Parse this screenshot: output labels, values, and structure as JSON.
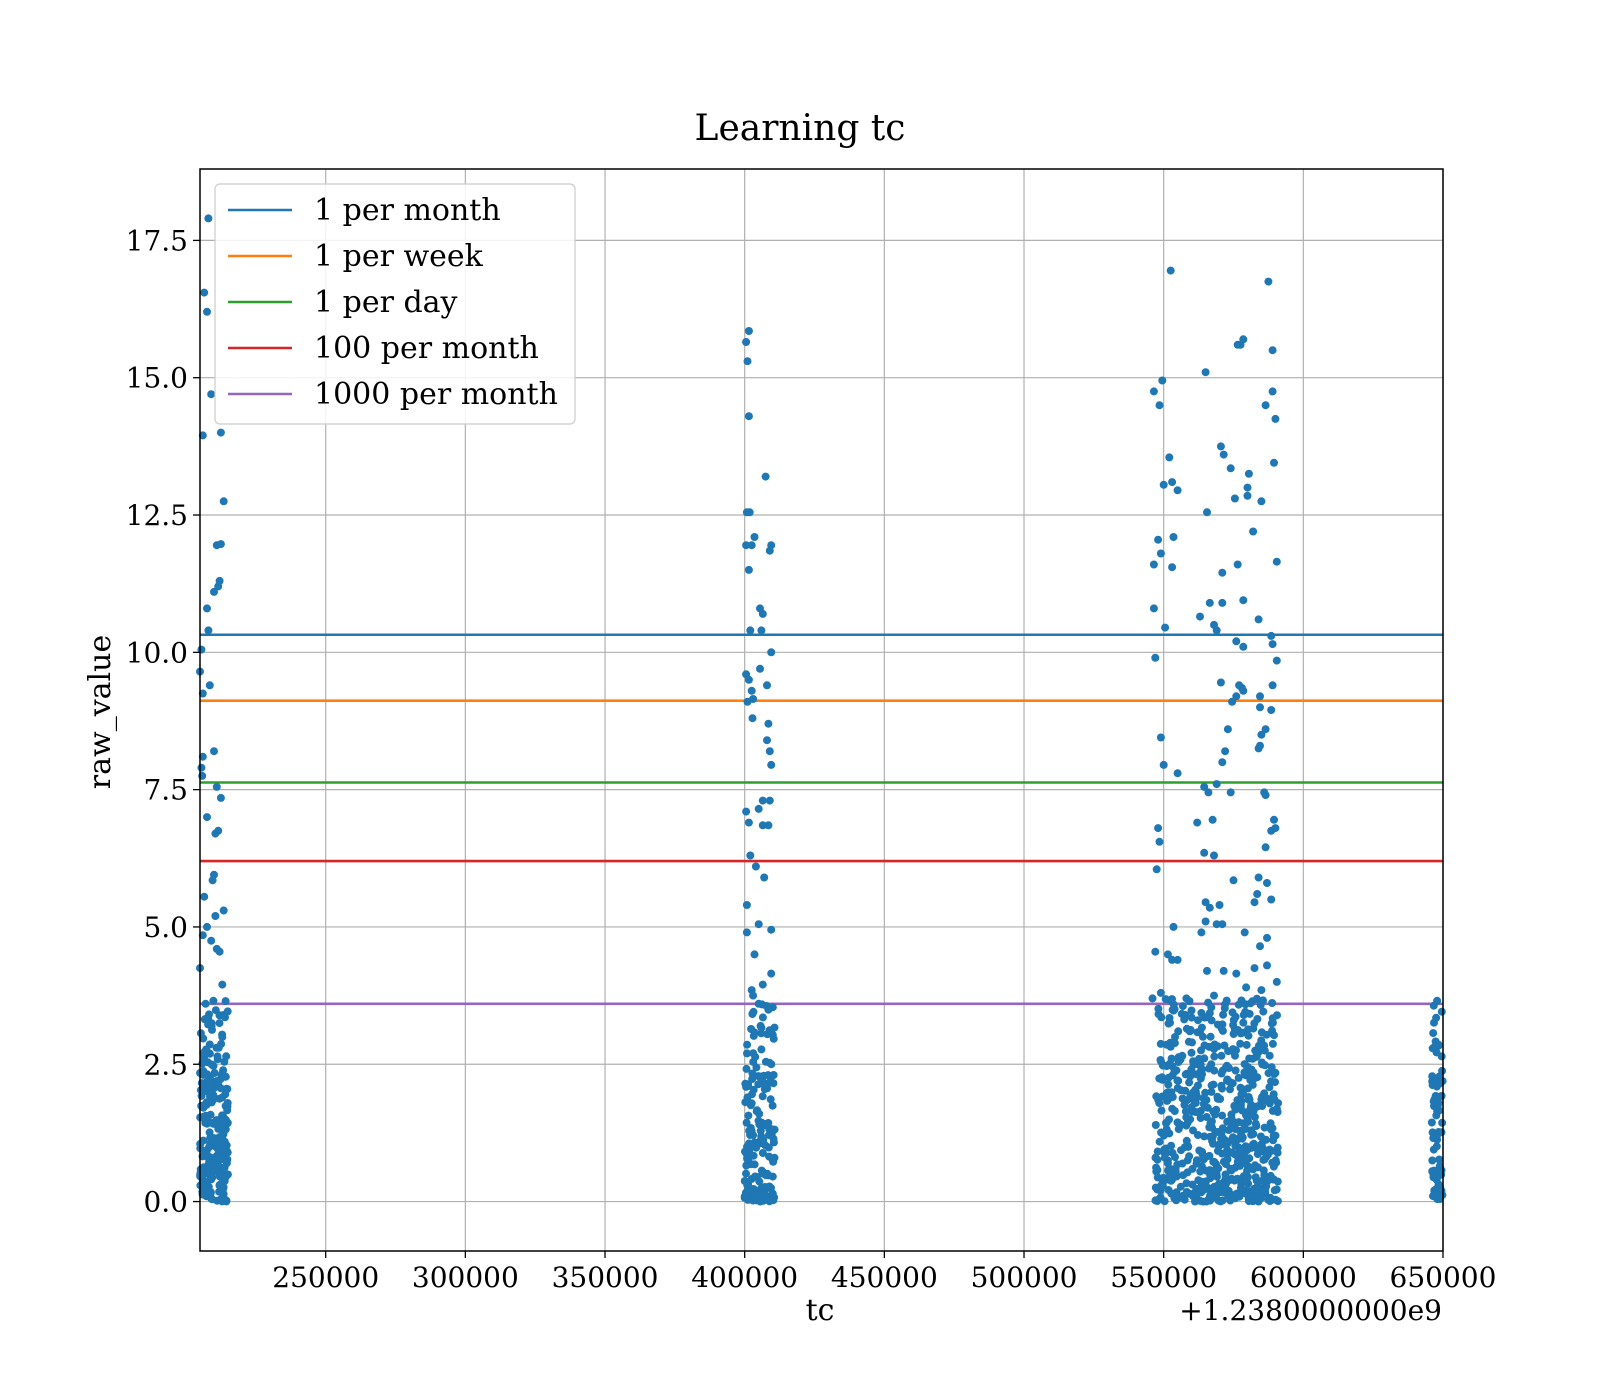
{
  "chart_data": {
    "type": "scatter",
    "title": "Learning tc",
    "xlabel": "tc",
    "ylabel": "raw_value",
    "x_offset_label": "+1.2380000000e9",
    "xlim": [
      205000,
      650000
    ],
    "ylim": [
      -0.9,
      18.8
    ],
    "xticks": [
      250000,
      300000,
      350000,
      400000,
      450000,
      500000,
      550000,
      600000,
      650000
    ],
    "yticks": [
      0.0,
      2.5,
      5.0,
      7.5,
      10.0,
      12.5,
      15.0,
      17.5
    ],
    "grid": true,
    "legend_position": "upper-left",
    "horizontal_lines": [
      {
        "name": "1 per month",
        "y": 10.32,
        "color": "#1f77b4"
      },
      {
        "name": "1 per week",
        "y": 9.12,
        "color": "#ff7f0e"
      },
      {
        "name": "1 per day",
        "y": 7.63,
        "color": "#2ca02c"
      },
      {
        "name": "100 per month",
        "y": 6.2,
        "color": "#d62728"
      },
      {
        "name": "1000 per month",
        "y": 3.6,
        "color": "#9467bd"
      }
    ],
    "scatter_color": "#1f77b4",
    "clusters": [
      {
        "x_range": [
          205000,
          215000
        ],
        "count": 230
      },
      {
        "x_range": [
          400000,
          411000
        ],
        "count": 170
      },
      {
        "x_range": [
          547000,
          591000
        ],
        "count": 650
      },
      {
        "x_range": [
          646000,
          650000
        ],
        "count": 70
      }
    ],
    "points": [
      [
        208000,
        17.9
      ],
      [
        206500,
        16.55
      ],
      [
        207500,
        16.2
      ],
      [
        209000,
        14.7
      ],
      [
        206000,
        13.95
      ],
      [
        212500,
        14.0
      ],
      [
        211000,
        11.95
      ],
      [
        212500,
        11.97
      ],
      [
        213500,
        12.75
      ],
      [
        210000,
        11.1
      ],
      [
        211500,
        11.2
      ],
      [
        212000,
        11.3
      ],
      [
        207500,
        10.8
      ],
      [
        208000,
        10.4
      ],
      [
        205500,
        10.05
      ],
      [
        205000,
        9.65
      ],
      [
        206000,
        9.25
      ],
      [
        208500,
        9.4
      ],
      [
        206000,
        8.1
      ],
      [
        210000,
        8.2
      ],
      [
        205500,
        7.9
      ],
      [
        205800,
        7.75
      ],
      [
        211000,
        7.55
      ],
      [
        212500,
        7.35
      ],
      [
        207500,
        7.0
      ],
      [
        210500,
        6.7
      ],
      [
        211500,
        6.75
      ],
      [
        210000,
        5.95
      ],
      [
        209500,
        5.85
      ],
      [
        206500,
        5.55
      ],
      [
        213500,
        5.3
      ],
      [
        210500,
        5.2
      ],
      [
        207500,
        5.0
      ],
      [
        206000,
        4.85
      ],
      [
        209000,
        4.75
      ],
      [
        211000,
        4.6
      ],
      [
        212000,
        4.55
      ],
      [
        205000,
        4.25
      ],
      [
        213000,
        3.95
      ],
      [
        207000,
        3.6
      ],
      [
        401500,
        15.85
      ],
      [
        400500,
        15.65
      ],
      [
        401000,
        15.3
      ],
      [
        401500,
        14.3
      ],
      [
        407500,
        13.2
      ],
      [
        400800,
        12.55
      ],
      [
        401800,
        12.55
      ],
      [
        403500,
        12.1
      ],
      [
        400500,
        11.95
      ],
      [
        402500,
        11.95
      ],
      [
        409500,
        11.95
      ],
      [
        409000,
        11.85
      ],
      [
        401500,
        11.5
      ],
      [
        405500,
        10.8
      ],
      [
        406500,
        10.7
      ],
      [
        402000,
        10.4
      ],
      [
        406000,
        10.4
      ],
      [
        409500,
        10.0
      ],
      [
        405500,
        9.7
      ],
      [
        400500,
        9.6
      ],
      [
        401500,
        9.5
      ],
      [
        402500,
        9.3
      ],
      [
        403000,
        9.15
      ],
      [
        408000,
        9.4
      ],
      [
        401000,
        9.1
      ],
      [
        402800,
        8.8
      ],
      [
        408500,
        8.7
      ],
      [
        408000,
        8.4
      ],
      [
        409000,
        8.2
      ],
      [
        409500,
        7.95
      ],
      [
        406500,
        7.3
      ],
      [
        409000,
        7.3
      ],
      [
        405000,
        7.15
      ],
      [
        400500,
        7.1
      ],
      [
        401500,
        6.9
      ],
      [
        406500,
        6.85
      ],
      [
        408500,
        6.85
      ],
      [
        402000,
        6.3
      ],
      [
        404000,
        6.1
      ],
      [
        407000,
        5.9
      ],
      [
        400800,
        5.4
      ],
      [
        400800,
        4.9
      ],
      [
        405000,
        5.05
      ],
      [
        409500,
        4.95
      ],
      [
        403500,
        4.5
      ],
      [
        409500,
        4.15
      ],
      [
        406500,
        3.95
      ],
      [
        402500,
        3.85
      ],
      [
        403000,
        3.75
      ],
      [
        405000,
        3.6
      ],
      [
        552500,
        16.95
      ],
      [
        587500,
        16.75
      ],
      [
        578500,
        15.7
      ],
      [
        577500,
        15.6
      ],
      [
        576500,
        15.6
      ],
      [
        589000,
        15.5
      ],
      [
        565000,
        15.1
      ],
      [
        549500,
        14.95
      ],
      [
        546500,
        14.75
      ],
      [
        589000,
        14.75
      ],
      [
        548500,
        14.5
      ],
      [
        586500,
        14.5
      ],
      [
        590000,
        14.25
      ],
      [
        570500,
        13.75
      ],
      [
        571500,
        13.6
      ],
      [
        552000,
        13.55
      ],
      [
        589500,
        13.45
      ],
      [
        574000,
        13.35
      ],
      [
        580500,
        13.25
      ],
      [
        553000,
        13.1
      ],
      [
        550000,
        13.05
      ],
      [
        555000,
        12.95
      ],
      [
        580000,
        13.0
      ],
      [
        575500,
        12.8
      ],
      [
        580000,
        12.85
      ],
      [
        585000,
        12.75
      ],
      [
        565500,
        12.55
      ],
      [
        582000,
        12.2
      ],
      [
        548000,
        12.05
      ],
      [
        553500,
        12.1
      ],
      [
        549000,
        11.8
      ],
      [
        546500,
        11.6
      ],
      [
        553000,
        11.55
      ],
      [
        576500,
        11.6
      ],
      [
        571000,
        11.45
      ],
      [
        590500,
        11.65
      ],
      [
        563000,
        10.65
      ],
      [
        566500,
        10.9
      ],
      [
        571000,
        10.9
      ],
      [
        578500,
        10.95
      ],
      [
        568000,
        10.5
      ],
      [
        569000,
        10.4
      ],
      [
        546500,
        10.8
      ],
      [
        550500,
        10.45
      ],
      [
        584000,
        10.6
      ],
      [
        588500,
        10.3
      ],
      [
        589000,
        10.15
      ],
      [
        576000,
        10.2
      ],
      [
        578500,
        10.1
      ],
      [
        547000,
        9.9
      ],
      [
        590500,
        9.85
      ],
      [
        570500,
        9.45
      ],
      [
        577000,
        9.4
      ],
      [
        578000,
        9.35
      ],
      [
        589000,
        9.4
      ],
      [
        576000,
        9.2
      ],
      [
        584500,
        9.2
      ],
      [
        584500,
        9.0
      ],
      [
        574500,
        9.1
      ],
      [
        578500,
        9.3
      ],
      [
        588500,
        8.95
      ],
      [
        586500,
        8.6
      ],
      [
        585000,
        8.5
      ],
      [
        573000,
        8.6
      ],
      [
        584000,
        8.25
      ],
      [
        572000,
        8.2
      ],
      [
        584500,
        8.3
      ],
      [
        549000,
        8.45
      ],
      [
        571000,
        8.0
      ],
      [
        550000,
        7.95
      ],
      [
        555000,
        7.8
      ],
      [
        569000,
        7.6
      ],
      [
        564500,
        7.55
      ],
      [
        566000,
        7.45
      ],
      [
        574000,
        7.45
      ],
      [
        586500,
        7.4
      ],
      [
        586000,
        7.45
      ],
      [
        589500,
        6.95
      ],
      [
        567500,
        6.95
      ],
      [
        588500,
        6.75
      ],
      [
        590000,
        6.8
      ],
      [
        562000,
        6.9
      ],
      [
        548000,
        6.8
      ],
      [
        564500,
        6.35
      ],
      [
        568000,
        6.3
      ],
      [
        548500,
        6.55
      ],
      [
        547500,
        6.05
      ],
      [
        586500,
        6.45
      ],
      [
        584000,
        5.9
      ],
      [
        575000,
        5.85
      ],
      [
        587000,
        5.8
      ],
      [
        583500,
        5.6
      ],
      [
        588500,
        5.5
      ],
      [
        565000,
        5.45
      ],
      [
        582500,
        5.45
      ],
      [
        570000,
        5.4
      ],
      [
        566500,
        5.35
      ],
      [
        553500,
        5.0
      ],
      [
        569000,
        5.05
      ],
      [
        565000,
        5.1
      ],
      [
        571000,
        5.05
      ],
      [
        587000,
        4.8
      ],
      [
        579000,
        4.9
      ],
      [
        563500,
        4.9
      ],
      [
        547000,
        4.55
      ],
      [
        551500,
        4.5
      ],
      [
        584500,
        4.65
      ],
      [
        555000,
        4.4
      ],
      [
        553000,
        4.4
      ],
      [
        582500,
        4.25
      ],
      [
        587000,
        4.3
      ],
      [
        565500,
        4.2
      ],
      [
        576000,
        4.15
      ],
      [
        571500,
        4.2
      ],
      [
        590500,
        4.0
      ],
      [
        579500,
        3.9
      ],
      [
        585000,
        3.85
      ],
      [
        549000,
        3.8
      ],
      [
        568000,
        3.75
      ],
      [
        546000,
        3.7
      ]
    ]
  }
}
